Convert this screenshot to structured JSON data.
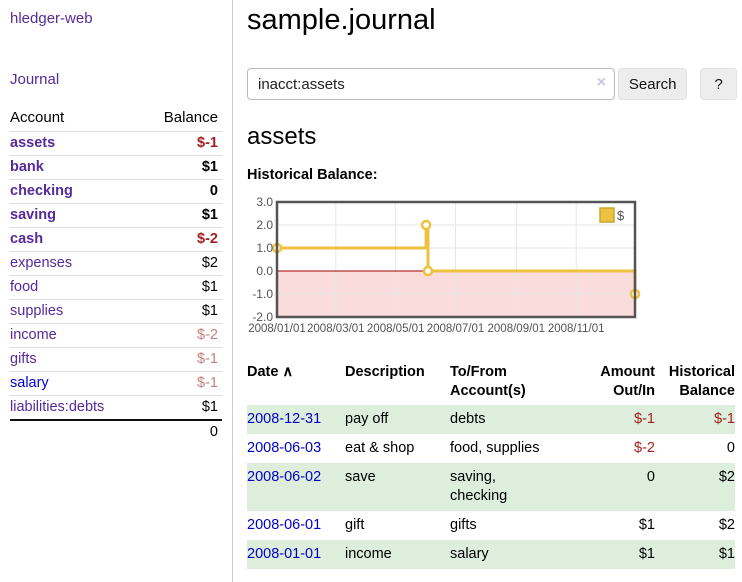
{
  "colors": {
    "link_purple": "#552a9b",
    "link_blue": "#0000cc",
    "negative_strong": "#a22222",
    "negative_soft": "#c57f7f",
    "row_stripe_green": "#ddeedd",
    "chart_line_gold": "#edc240"
  },
  "sidebar": {
    "app_title": "hledger-web",
    "journal_link": "Journal",
    "accounts": {
      "col_account": "Account",
      "col_balance": "Balance",
      "rows": [
        {
          "name": "assets",
          "depth": 1,
          "bold": true,
          "link": "purple",
          "balance": "$-1",
          "tone": "neg-strong"
        },
        {
          "name": "bank",
          "depth": 2,
          "bold": true,
          "link": "purple",
          "balance": "$1",
          "tone": "pos"
        },
        {
          "name": "checking",
          "depth": 3,
          "bold": true,
          "link": "purple",
          "balance": "0",
          "tone": "pos"
        },
        {
          "name": "saving",
          "depth": 3,
          "bold": true,
          "link": "purple",
          "balance": "$1",
          "tone": "pos"
        },
        {
          "name": "cash",
          "depth": 2,
          "bold": true,
          "link": "purple",
          "balance": "$-2",
          "tone": "neg-strong"
        },
        {
          "name": "expenses",
          "depth": 1,
          "bold": false,
          "link": "purple",
          "balance": "$2",
          "tone": "pos"
        },
        {
          "name": "food",
          "depth": 2,
          "bold": false,
          "link": "purple",
          "balance": "$1",
          "tone": "pos"
        },
        {
          "name": "supplies",
          "depth": 2,
          "bold": false,
          "link": "purple",
          "balance": "$1",
          "tone": "pos"
        },
        {
          "name": "income",
          "depth": 1,
          "bold": false,
          "link": "purple",
          "balance": "$-2",
          "tone": "neg-soft"
        },
        {
          "name": "gifts",
          "depth": 2,
          "bold": false,
          "link": "purple",
          "balance": "$-1",
          "tone": "neg-soft"
        },
        {
          "name": "salary",
          "depth": 2,
          "bold": false,
          "link": "blue",
          "balance": "$-1",
          "tone": "neg-soft"
        },
        {
          "name": "liabilities:debts",
          "depth": 1,
          "bold": false,
          "link": "purple",
          "balance": "$1",
          "tone": "pos"
        }
      ],
      "total": "0"
    }
  },
  "main": {
    "page_title": "sample.journal",
    "search": {
      "value": "inacct:assets",
      "clear_label": "×",
      "search_button": "Search",
      "help_button": "?"
    },
    "account_heading": "assets",
    "chart_title": "Historical Balance:"
  },
  "chart_data": {
    "type": "line",
    "steps": true,
    "title": "Historical Balance:",
    "series": [
      {
        "name": "$",
        "color": "#edc240",
        "points": [
          [
            "2008-01-01",
            1
          ],
          [
            "2008-06-01",
            2
          ],
          [
            "2008-06-03",
            0
          ],
          [
            "2008-12-31",
            -1
          ]
        ]
      }
    ],
    "x_range": [
      "2008-01-01",
      "2008-12-31"
    ],
    "x_tick_dates": [
      "2008-01-01",
      "2008-03-01",
      "2008-05-01",
      "2008-07-01",
      "2008-09-01",
      "2008-11-01"
    ],
    "x_tick_labels": [
      "2008/01/01",
      "2008/03/01",
      "2008/05/01",
      "2008/07/01",
      "2008/09/01",
      "2008/11/01"
    ],
    "y_ticks": [
      3,
      2,
      1,
      0,
      -1,
      -2
    ],
    "y_tick_labels": [
      "3.0",
      "2.0",
      "1.0",
      "0.0",
      "-1.0",
      "-2.0"
    ],
    "ylim": [
      -2,
      3
    ],
    "grid": true,
    "grid_color": "#e6e6e6",
    "border_color": "#545454",
    "label_color": "#545454",
    "negative_fill": "#fbdcdc",
    "zero_line_color": "#a40000",
    "legend": {
      "label": "$",
      "position": "top-right"
    }
  },
  "register": {
    "sort_icon": "∧",
    "headers": [
      {
        "label": "Date"
      },
      {
        "label": "Description"
      },
      {
        "label": "To/From Account(s)"
      },
      {
        "label": "Amount Out/In"
      },
      {
        "label": "Historical Balance"
      }
    ],
    "rows": [
      {
        "date": "2008-12-31",
        "description": "pay off",
        "accounts": "debts",
        "amount": "$-1",
        "amount_tone": "neg-strong",
        "balance": "$-1",
        "balance_tone": "neg-strong"
      },
      {
        "date": "2008-06-03",
        "description": "eat & shop",
        "accounts": "food, supplies",
        "amount": "$-2",
        "amount_tone": "neg-strong",
        "balance": "0",
        "balance_tone": "pos"
      },
      {
        "date": "2008-06-02",
        "description": "save",
        "accounts": "saving, checking",
        "amount": "0",
        "amount_tone": "pos",
        "balance": "$2",
        "balance_tone": "pos"
      },
      {
        "date": "2008-06-01",
        "description": "gift",
        "accounts": "gifts",
        "amount": "$1",
        "amount_tone": "pos",
        "balance": "$2",
        "balance_tone": "pos"
      },
      {
        "date": "2008-01-01",
        "description": "income",
        "accounts": "salary",
        "amount": "$1",
        "amount_tone": "pos",
        "balance": "$1",
        "balance_tone": "pos"
      }
    ]
  }
}
